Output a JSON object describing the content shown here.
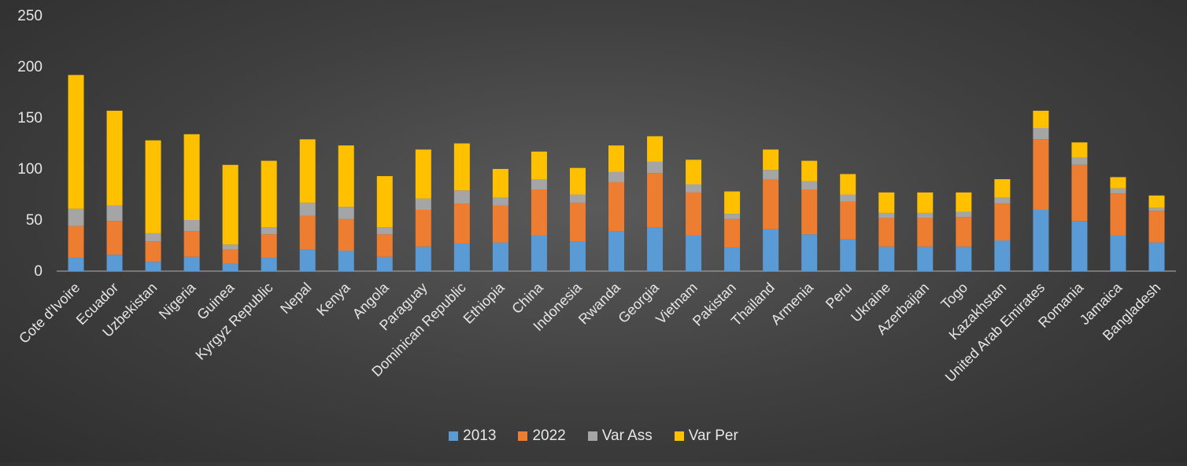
{
  "chart_data": {
    "type": "bar",
    "stacked": true,
    "title": "",
    "xlabel": "",
    "ylabel": "",
    "ylim": [
      0,
      250
    ],
    "yticks": [
      0,
      50,
      100,
      150,
      200,
      250
    ],
    "grid": false,
    "legend_position": "bottom",
    "categories": [
      "Cote d'Ivoire",
      "Ecuador",
      "Uzbekistan",
      "Nigeria",
      "Guinea",
      "Kyrgyz Republic",
      "Nepal",
      "Kenya",
      "Angola",
      "Paraguay",
      "Dominican Republic",
      "Ethiopia",
      "China",
      "Indonesia",
      "Rwanda",
      "Georgia",
      "Vietnam",
      "Pakistan",
      "Thailand",
      "Armenia",
      "Peru",
      "Ukraine",
      "Azerbaijan",
      "Togo",
      "Kazakhstan",
      "United Arab Emirates",
      "Romania",
      "Jamaica",
      "Bangladesh"
    ],
    "series": [
      {
        "name": "2013",
        "color": "#5b9bd5",
        "values": [
          13,
          16,
          9,
          14,
          7,
          13,
          21,
          20,
          14,
          24,
          27,
          28,
          35,
          29,
          39,
          43,
          35,
          23,
          41,
          36,
          31,
          24,
          24,
          24,
          30,
          60,
          49,
          35,
          28
        ]
      },
      {
        "name": "2022",
        "color": "#ed7d31",
        "values": [
          31,
          33,
          20,
          25,
          14,
          23,
          33,
          31,
          22,
          36,
          39,
          36,
          45,
          38,
          48,
          53,
          42,
          28,
          49,
          44,
          37,
          28,
          28,
          29,
          36,
          69,
          55,
          41,
          31
        ]
      },
      {
        "name": "Var Ass",
        "color": "#a5a5a5",
        "values": [
          17,
          15,
          8,
          11,
          5,
          7,
          13,
          12,
          7,
          11,
          13,
          8,
          10,
          8,
          10,
          11,
          8,
          5,
          9,
          8,
          7,
          5,
          5,
          5,
          6,
          11,
          7,
          5,
          3
        ]
      },
      {
        "name": "Var Per",
        "color": "#ffc000",
        "values": [
          131,
          93,
          91,
          84,
          78,
          65,
          62,
          60,
          50,
          48,
          46,
          28,
          27,
          26,
          26,
          25,
          24,
          22,
          20,
          20,
          20,
          20,
          20,
          19,
          18,
          17,
          15,
          11,
          12
        ]
      }
    ]
  }
}
